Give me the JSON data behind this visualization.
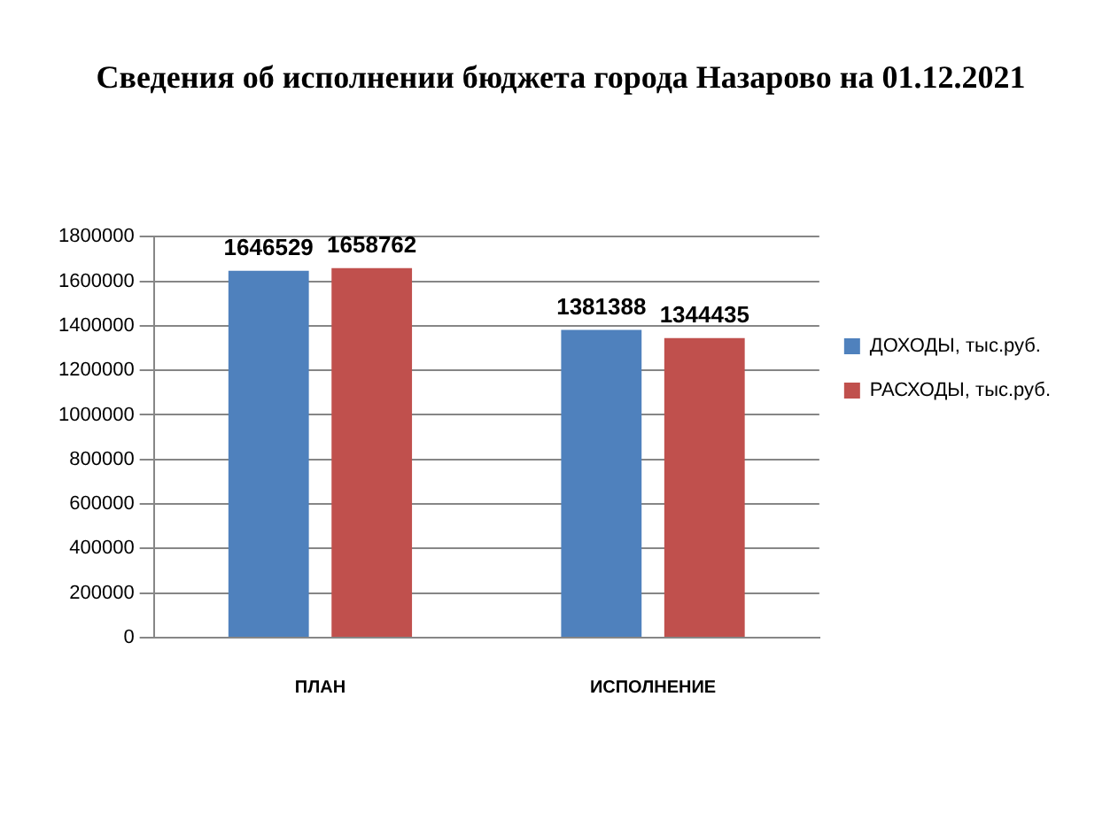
{
  "chart_data": {
    "type": "bar",
    "title": "Сведения об исполнении бюджета города Назарово на 01.12.2021",
    "categories": [
      "ПЛАН",
      "ИСПОЛНЕНИЕ"
    ],
    "series": [
      {
        "name": "ДОХОДЫ, тыс.руб.",
        "color": "#4f81bd",
        "values": [
          1646529,
          1381388
        ]
      },
      {
        "name": "РАСХОДЫ, тыс.руб.",
        "color": "#c0504d",
        "values": [
          1658762,
          1344435
        ]
      }
    ],
    "ylim": [
      0,
      1800000
    ],
    "yticks": [
      0,
      200000,
      400000,
      600000,
      800000,
      1000000,
      1200000,
      1400000,
      1600000,
      1800000
    ],
    "grid": "y",
    "legend": "right",
    "data_labels": true
  }
}
